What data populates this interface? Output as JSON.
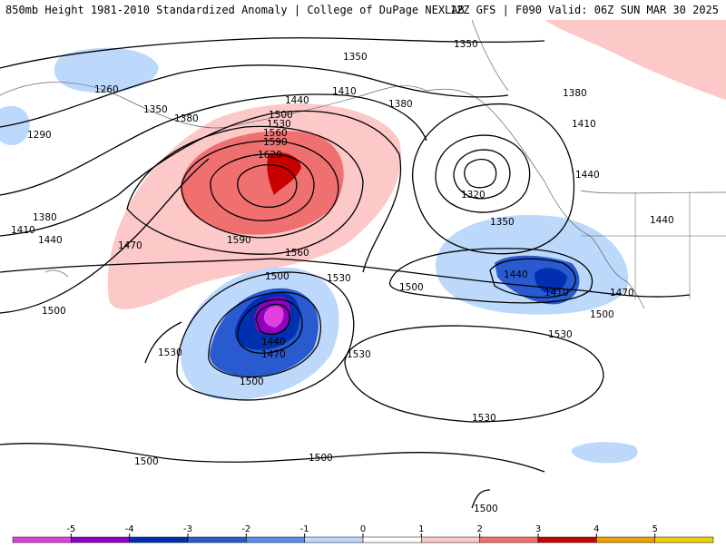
{
  "header": {
    "left_title": "850mb Height 1981-2010 Standardized Anomaly | College of DuPage NEXLAB",
    "right_title": "12Z GFS | F090 Valid: 06Z SUN MAR 30 2025"
  },
  "contour_labels": [
    "1350",
    "1350",
    "1260",
    "1350",
    "1380",
    "1410",
    "1380",
    "1380",
    "1410",
    "1440",
    "1290",
    "1440",
    "1500",
    "1530",
    "1560",
    "1590",
    "1620",
    "1320",
    "1350",
    "1440",
    "1410",
    "1380",
    "1440",
    "1470",
    "1590",
    "1560",
    "1530",
    "1500",
    "1500",
    "1440",
    "1410",
    "1470",
    "1500",
    "1500",
    "1440",
    "1470",
    "1530",
    "1530",
    "1500",
    "1530",
    "1530",
    "1500",
    "1500",
    "1500"
  ],
  "colorbar": {
    "ticks": [
      "-5",
      "-4",
      "-3",
      "-2",
      "-1",
      "0",
      "1",
      "2",
      "3",
      "4",
      "5"
    ],
    "colors": [
      "#e040e0",
      "#9000c0",
      "#0030b0",
      "#2a5ad0",
      "#5a8cf0",
      "#bcd8fb",
      "#ffffff",
      "#fcc8c8",
      "#f07070",
      "#c80000",
      "#f0a000",
      "#f0d000"
    ]
  }
}
